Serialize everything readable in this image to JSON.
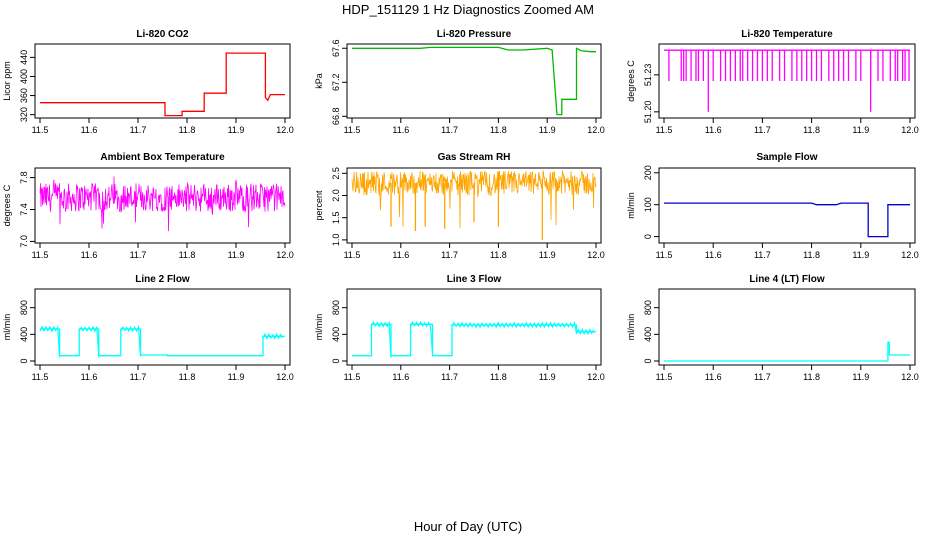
{
  "title": "HDP_151129  1 Hz Diagnostics Zoomed AM",
  "xlabel": "Hour of Day (UTC)",
  "chart_data": [
    {
      "type": "line",
      "title": "Li-820 CO2",
      "ylabel": "Licor ppm",
      "color": "#ff0000",
      "xlim": [
        11.5,
        12.0
      ],
      "ylim": [
        313,
        468
      ],
      "xticks": [
        "11.5",
        "11.6",
        "11.7",
        "11.8",
        "11.9",
        "12.0"
      ],
      "yticks": [
        "320",
        "360",
        "400",
        "440"
      ],
      "series": [
        {
          "name": "CO2",
          "x": [
            11.5,
            11.755,
            11.755,
            11.79,
            11.79,
            11.835,
            11.835,
            11.88,
            11.88,
            11.96,
            11.96,
            11.965,
            11.97,
            12.0
          ],
          "y": [
            345,
            345,
            318,
            318,
            327,
            327,
            365,
            365,
            449,
            449,
            356,
            350,
            362,
            362
          ]
        }
      ]
    },
    {
      "type": "line",
      "title": "Li-820 Pressure",
      "ylabel": "kPa",
      "color": "#00bb00",
      "xlim": [
        11.5,
        12.0
      ],
      "ylim": [
        66.78,
        67.65
      ],
      "xticks": [
        "11.5",
        "11.6",
        "11.7",
        "11.8",
        "11.9",
        "12.0"
      ],
      "yticks": [
        "66.8",
        "67.2",
        "67.6"
      ],
      "series": [
        {
          "name": "Pressure",
          "x": [
            11.5,
            11.64,
            11.66,
            11.8,
            11.82,
            11.85,
            11.9,
            11.91,
            11.92,
            11.93,
            11.93,
            11.96,
            11.96,
            11.97,
            11.99,
            12.0
          ],
          "y": [
            67.6,
            67.6,
            67.61,
            67.61,
            67.58,
            67.58,
            67.6,
            67.58,
            66.82,
            66.82,
            67.0,
            67.0,
            67.6,
            67.57,
            67.56,
            67.56
          ]
        }
      ]
    },
    {
      "type": "line",
      "title": "Li-820 Temperature",
      "ylabel": "degrees C",
      "color": "#ff00ff",
      "xlim": [
        11.5,
        12.0
      ],
      "ylim": [
        51.195,
        51.255
      ],
      "xticks": [
        "11.5",
        "11.6",
        "11.7",
        "11.8",
        "11.9",
        "12.0"
      ],
      "yticks": [
        "51.20",
        "51.23"
      ],
      "base": 51.25,
      "low": 51.225,
      "deep": 51.2,
      "drops": [
        11.51,
        11.535,
        11.54,
        11.545,
        11.555,
        11.565,
        11.57,
        11.58,
        11.6,
        11.615,
        11.625,
        11.635,
        11.645,
        11.655,
        11.66,
        11.67,
        11.68,
        11.69,
        11.7,
        11.71,
        11.72,
        11.735,
        11.745,
        11.76,
        11.77,
        11.78,
        11.79,
        11.8,
        11.81,
        11.82,
        11.835,
        11.845,
        11.855,
        11.865,
        11.875,
        11.89,
        11.9,
        11.92,
        11.935,
        11.945,
        11.96,
        11.97,
        11.975,
        11.985,
        11.99,
        11.998
      ],
      "deep_drops": [
        11.59,
        11.92
      ]
    },
    {
      "type": "line",
      "title": "Ambient Box Temperature",
      "ylabel": "degrees C",
      "color": "#ff00ff",
      "xlim": [
        11.5,
        12.0
      ],
      "ylim": [
        6.98,
        7.92
      ],
      "xticks": [
        "11.5",
        "11.6",
        "11.7",
        "11.8",
        "11.9",
        "12.0"
      ],
      "yticks": [
        "7.0",
        "7.4",
        "7.8"
      ],
      "noise": {
        "center": 7.55,
        "band": 0.18,
        "spike_low": 7.1,
        "spike_high": 7.9
      }
    },
    {
      "type": "line",
      "title": "Gas Stream RH",
      "ylabel": "percent",
      "color": "#ffa500",
      "xlim": [
        11.5,
        12.0
      ],
      "ylim": [
        0.93,
        2.62
      ],
      "xticks": [
        "11.5",
        "11.6",
        "11.7",
        "11.8",
        "11.9",
        "12.0"
      ],
      "yticks": [
        "1.0",
        "1.5",
        "2.0",
        "2.5"
      ],
      "noise": {
        "center": 2.28,
        "band": 0.28,
        "spike_low": 1.2,
        "spike_high": 2.55
      },
      "big_dips": [
        [
          11.58,
          1.3
        ],
        [
          11.63,
          1.2
        ],
        [
          11.65,
          1.3
        ],
        [
          11.69,
          1.25
        ],
        [
          11.75,
          1.4
        ],
        [
          11.8,
          1.3
        ],
        [
          11.89,
          1.0
        ]
      ]
    },
    {
      "type": "line",
      "title": "Sample Flow",
      "ylabel": "ml/min",
      "color": "#0000cc",
      "xlim": [
        11.5,
        12.0
      ],
      "ylim": [
        -20,
        215
      ],
      "xticks": [
        "11.5",
        "11.6",
        "11.7",
        "11.8",
        "11.9",
        "12.0"
      ],
      "yticks": [
        "0",
        "100",
        "200"
      ],
      "series": [
        {
          "name": "Sample Flow",
          "x": [
            11.5,
            11.8,
            11.81,
            11.85,
            11.86,
            11.915,
            11.915,
            11.955,
            11.955,
            12.0
          ],
          "y": [
            105,
            105,
            100,
            100,
            105,
            105,
            0,
            0,
            100,
            100
          ]
        }
      ]
    },
    {
      "type": "line",
      "title": "Line 2 Flow",
      "ylabel": "ml/min",
      "color": "#00ffff",
      "xlim": [
        11.5,
        12.0
      ],
      "ylim": [
        -60,
        1080
      ],
      "xticks": [
        "11.5",
        "11.6",
        "11.7",
        "11.8",
        "11.9",
        "12.0"
      ],
      "yticks": [
        "0",
        "400",
        "800"
      ],
      "series": [
        {
          "name": "Line 2",
          "x": [
            11.5,
            11.54,
            11.54,
            11.58,
            11.58,
            11.62,
            11.62,
            11.665,
            11.665,
            11.705,
            11.705,
            11.76,
            11.76,
            11.955,
            11.955,
            12.0
          ],
          "y": [
            480,
            480,
            80,
            80,
            480,
            480,
            80,
            80,
            480,
            480,
            90,
            90,
            80,
            80,
            370,
            370
          ]
        }
      ],
      "wiggle": [
        [
          11.5,
          11.54
        ],
        [
          11.58,
          11.62
        ],
        [
          11.665,
          11.705
        ],
        [
          11.955,
          11.995
        ]
      ]
    },
    {
      "type": "line",
      "title": "Line 3 Flow",
      "ylabel": "ml/min",
      "color": "#00ffff",
      "xlim": [
        11.5,
        12.0
      ],
      "ylim": [
        -60,
        1080
      ],
      "xticks": [
        "11.5",
        "11.6",
        "11.7",
        "11.8",
        "11.9",
        "12.0"
      ],
      "yticks": [
        "0",
        "400",
        "800"
      ],
      "series": [
        {
          "name": "Line 3",
          "x": [
            11.5,
            11.54,
            11.54,
            11.58,
            11.58,
            11.62,
            11.62,
            11.665,
            11.665,
            11.705,
            11.705,
            11.96,
            11.96,
            12.0
          ],
          "y": [
            80,
            80,
            550,
            550,
            80,
            80,
            550,
            550,
            80,
            80,
            540,
            540,
            440,
            440
          ]
        }
      ],
      "wiggle": [
        [
          11.54,
          11.58
        ],
        [
          11.62,
          11.665
        ],
        [
          11.705,
          11.96
        ],
        [
          11.96,
          11.995
        ]
      ]
    },
    {
      "type": "line",
      "title": "Line 4 (LT) Flow",
      "ylabel": "ml/min",
      "color": "#00ffff",
      "xlim": [
        11.5,
        12.0
      ],
      "ylim": [
        -60,
        1080
      ],
      "xticks": [
        "11.5",
        "11.6",
        "11.7",
        "11.8",
        "11.9",
        "12.0"
      ],
      "yticks": [
        "0",
        "400",
        "800"
      ],
      "series": [
        {
          "name": "Line 4",
          "x": [
            11.5,
            11.955,
            11.955,
            11.958,
            11.958,
            12.0
          ],
          "y": [
            0,
            0,
            280,
            280,
            90,
            90
          ]
        }
      ]
    }
  ]
}
